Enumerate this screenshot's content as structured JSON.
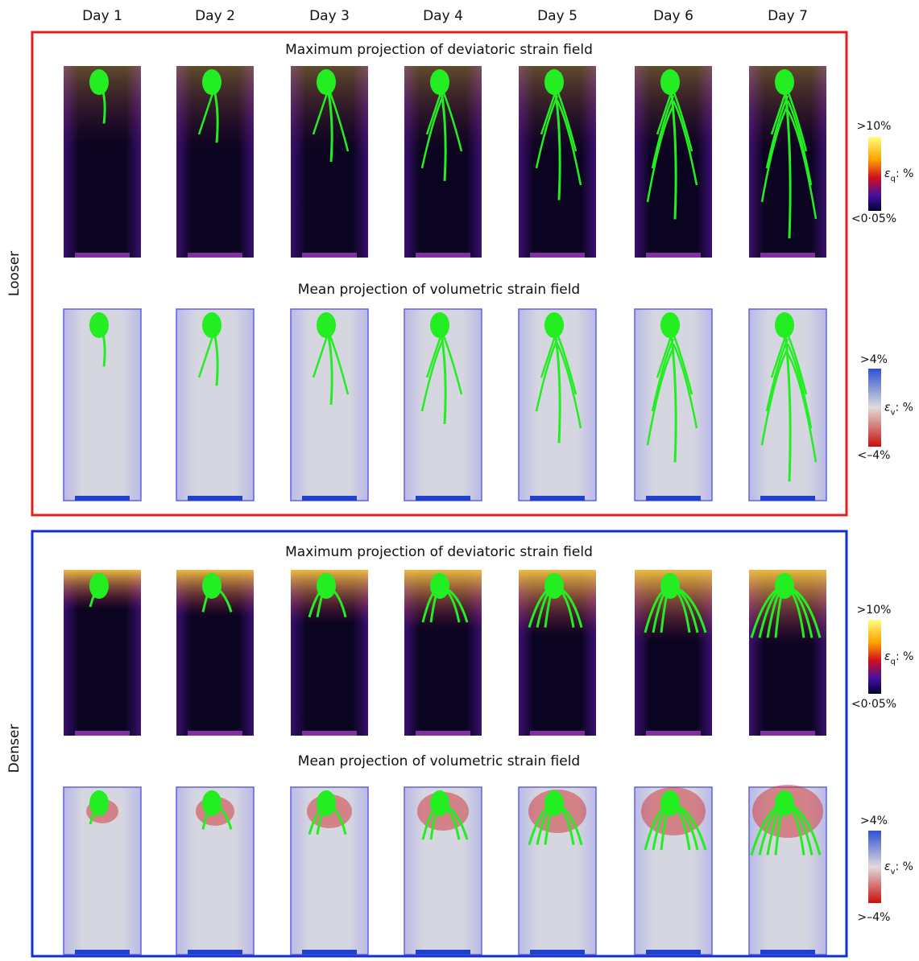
{
  "columns": [
    "Day 1",
    "Day 2",
    "Day 3",
    "Day 4",
    "Day 5",
    "Day 6",
    "Day 7"
  ],
  "panels": [
    {
      "label": "Looser",
      "rows": [
        {
          "title": "Maximum projection of deviatoric strain field",
          "colorbar": {
            "max": ">10%",
            "min": "<0·05%",
            "symbol": "ε",
            "subscript": "q",
            "unit": ": %"
          }
        },
        {
          "title": "Mean projection of volumetric strain field",
          "colorbar": {
            "max": ">4%",
            "min": "<–4%",
            "symbol": "ε",
            "subscript": "v",
            "unit": ": %"
          }
        }
      ]
    },
    {
      "label": "Denser",
      "rows": [
        {
          "title": "Maximum projection of deviatoric strain field",
          "colorbar": {
            "max": ">10%",
            "min": "<0·05%",
            "symbol": "ε",
            "subscript": "q",
            "unit": ": %"
          }
        },
        {
          "title": "Mean projection of volumetric strain field",
          "colorbar": {
            "max": ">4%",
            "min": ">–4%",
            "symbol": "ε",
            "subscript": "v",
            "unit": ": %"
          }
        }
      ]
    }
  ]
}
